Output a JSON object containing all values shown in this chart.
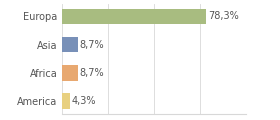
{
  "categories": [
    "America",
    "Africa",
    "Asia",
    "Europa"
  ],
  "values": [
    4.3,
    8.7,
    8.7,
    78.3
  ],
  "labels": [
    "4,3%",
    "8,7%",
    "8,7%",
    "78,3%"
  ],
  "bar_colors": [
    "#e8d080",
    "#e8a870",
    "#7890b8",
    "#a8bc80"
  ],
  "xlim": [
    0,
    100
  ],
  "background_color": "#ffffff",
  "label_fontsize": 7.0,
  "tick_fontsize": 7.0,
  "bar_height": 0.55,
  "grid_color": "#d8d8d8",
  "tick_color": "#888888",
  "text_color": "#555555"
}
